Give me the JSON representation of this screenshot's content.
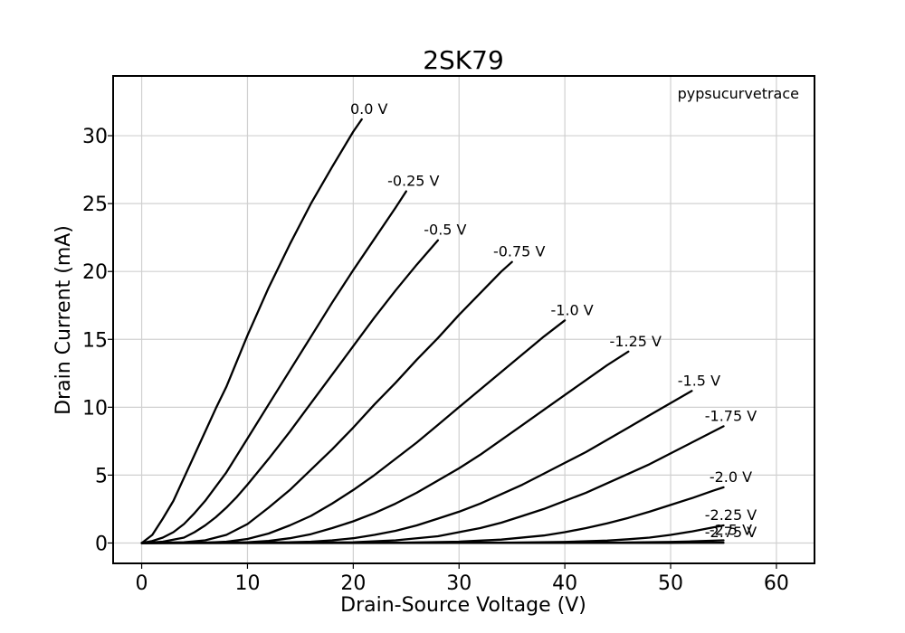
{
  "chart_data": {
    "type": "line",
    "title": "2SK79",
    "xlabel": "Drain-Source Voltage (V)",
    "ylabel": "Drain Current (mA)",
    "annotation": "pypsucurvetrace",
    "xlim": [
      -2.7,
      63.6
    ],
    "ylim": [
      -1.5,
      34.4
    ],
    "xticks": [
      0,
      10,
      20,
      30,
      40,
      50,
      60
    ],
    "yticks": [
      0,
      5,
      10,
      15,
      20,
      25,
      30
    ],
    "grid": true,
    "series": [
      {
        "name": "0.0 V",
        "x": [
          0,
          1,
          2,
          3,
          4,
          5,
          6,
          7,
          8,
          9,
          10,
          12,
          14,
          16,
          18,
          20,
          20.8
        ],
        "y": [
          0,
          0.6,
          1.8,
          3.1,
          4.8,
          6.5,
          8.2,
          9.9,
          11.5,
          13.4,
          15.3,
          18.8,
          22.0,
          25.0,
          27.7,
          30.3,
          31.2
        ]
      },
      {
        "name": "-0.25 V",
        "x": [
          0,
          1,
          2,
          3,
          4,
          5,
          6,
          8,
          10,
          12,
          14,
          16,
          18,
          20,
          22,
          24,
          25
        ],
        "y": [
          0,
          0.15,
          0.4,
          0.8,
          1.4,
          2.2,
          3.1,
          5.2,
          7.7,
          10.2,
          12.7,
          15.2,
          17.7,
          20.1,
          22.4,
          24.7,
          25.9
        ]
      },
      {
        "name": "-0.5 V",
        "x": [
          0,
          2,
          4,
          5,
          6,
          7,
          8,
          9,
          10,
          12,
          14,
          16,
          18,
          20,
          22,
          24,
          26,
          28
        ],
        "y": [
          0,
          0.1,
          0.4,
          0.8,
          1.3,
          1.9,
          2.6,
          3.4,
          4.3,
          6.2,
          8.2,
          10.3,
          12.4,
          14.5,
          16.6,
          18.6,
          20.5,
          22.3
        ]
      },
      {
        "name": "-0.75 V",
        "x": [
          0,
          4,
          6,
          8,
          9,
          10,
          12,
          14,
          16,
          18,
          20,
          22,
          24,
          26,
          28,
          30,
          32,
          34,
          35
        ],
        "y": [
          0,
          0.05,
          0.2,
          0.6,
          1.0,
          1.4,
          2.6,
          3.9,
          5.4,
          6.9,
          8.5,
          10.2,
          11.8,
          13.5,
          15.1,
          16.8,
          18.4,
          20.0,
          20.7
        ]
      },
      {
        "name": "-1.0 V",
        "x": [
          0,
          6,
          8,
          10,
          12,
          14,
          16,
          18,
          20,
          22,
          24,
          26,
          28,
          30,
          32,
          34,
          36,
          38,
          40
        ],
        "y": [
          0,
          0.02,
          0.1,
          0.3,
          0.7,
          1.3,
          2.0,
          2.9,
          3.9,
          5.0,
          6.2,
          7.4,
          8.7,
          10.0,
          11.3,
          12.6,
          13.9,
          15.2,
          16.4
        ]
      },
      {
        "name": "-1.25 V",
        "x": [
          0,
          10,
          12,
          14,
          16,
          18,
          20,
          22,
          24,
          26,
          28,
          30,
          32,
          34,
          36,
          38,
          40,
          42,
          44,
          46
        ],
        "y": [
          0,
          0.05,
          0.15,
          0.35,
          0.65,
          1.1,
          1.6,
          2.2,
          2.9,
          3.7,
          4.6,
          5.5,
          6.5,
          7.6,
          8.7,
          9.8,
          10.9,
          12.0,
          13.1,
          14.1
        ]
      },
      {
        "name": "-1.5 V",
        "x": [
          0,
          14,
          16,
          18,
          20,
          22,
          24,
          26,
          28,
          30,
          32,
          34,
          36,
          38,
          40,
          42,
          44,
          46,
          48,
          50,
          52
        ],
        "y": [
          0,
          0.05,
          0.1,
          0.2,
          0.35,
          0.6,
          0.9,
          1.3,
          1.8,
          2.3,
          2.9,
          3.6,
          4.3,
          5.1,
          5.9,
          6.7,
          7.6,
          8.5,
          9.4,
          10.3,
          11.2
        ]
      },
      {
        "name": "-1.75 V",
        "x": [
          0,
          20,
          24,
          28,
          30,
          32,
          34,
          36,
          38,
          40,
          42,
          44,
          46,
          48,
          50,
          52,
          54,
          55
        ],
        "y": [
          0,
          0.05,
          0.2,
          0.5,
          0.8,
          1.1,
          1.5,
          2.0,
          2.5,
          3.1,
          3.7,
          4.4,
          5.1,
          5.8,
          6.6,
          7.4,
          8.2,
          8.6
        ]
      },
      {
        "name": "-2.0 V",
        "x": [
          0,
          25,
          30,
          34,
          38,
          40,
          42,
          44,
          46,
          48,
          50,
          52,
          54,
          55
        ],
        "y": [
          0,
          0.03,
          0.1,
          0.25,
          0.55,
          0.8,
          1.1,
          1.45,
          1.85,
          2.3,
          2.8,
          3.3,
          3.85,
          4.1
        ]
      },
      {
        "name": "-2.25 V",
        "x": [
          0,
          35,
          40,
          44,
          46,
          48,
          50,
          52,
          54,
          55
        ],
        "y": [
          0,
          0.03,
          0.08,
          0.18,
          0.28,
          0.4,
          0.6,
          0.85,
          1.15,
          1.3
        ]
      },
      {
        "name": "-2.5 V",
        "x": [
          0,
          40,
          45,
          50,
          52,
          54,
          55
        ],
        "y": [
          0,
          0.01,
          0.03,
          0.08,
          0.12,
          0.17,
          0.2
        ]
      },
      {
        "name": "-2.75 V",
        "x": [
          0,
          50,
          55
        ],
        "y": [
          0,
          0.01,
          0.02
        ]
      }
    ]
  }
}
